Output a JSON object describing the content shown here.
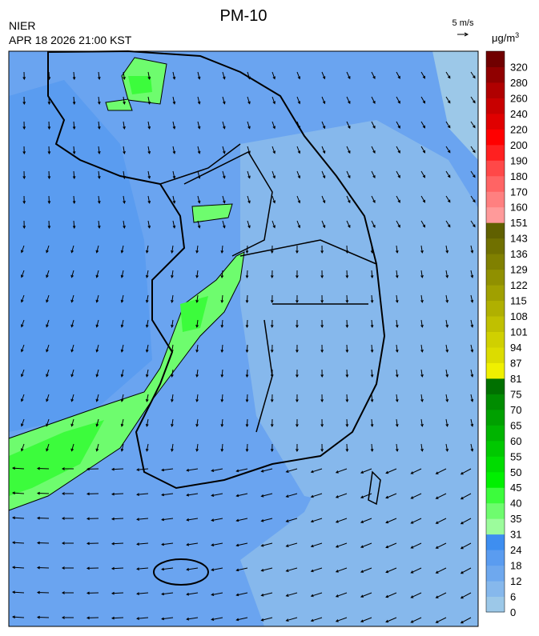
{
  "header": {
    "title": "PM-10",
    "agency": "NIER",
    "datetime": "APR 18 2026 21:00 KST"
  },
  "wind_legend": {
    "label": "5 m/s"
  },
  "colorbar": {
    "unit": "μg/m",
    "unit_sup": "3",
    "ticks": [
      0,
      6,
      12,
      18,
      24,
      31,
      35,
      40,
      45,
      50,
      55,
      60,
      65,
      70,
      75,
      81,
      87,
      94,
      101,
      108,
      115,
      122,
      129,
      136,
      143,
      151,
      160,
      170,
      180,
      190,
      200,
      220,
      240,
      260,
      280,
      320
    ],
    "colors": [
      "#9cc8e8",
      "#86b8ec",
      "#6ea8ee",
      "#5a9cf0",
      "#3e8ef0",
      "#9cfc9c",
      "#6efc6e",
      "#3cfc3c",
      "#00f000",
      "#00dc00",
      "#00c800",
      "#00b400",
      "#00a000",
      "#008c00",
      "#007000",
      "#f0f000",
      "#dcdc00",
      "#d0d000",
      "#c0c000",
      "#b0b000",
      "#a0a000",
      "#909000",
      "#808000",
      "#707000",
      "#606000",
      "#ff9a9a",
      "#ff8080",
      "#ff6464",
      "#ff4848",
      "#ff2020",
      "#ff0000",
      "#e00000",
      "#c80000",
      "#b00000",
      "#900000",
      "#700000"
    ]
  }
}
